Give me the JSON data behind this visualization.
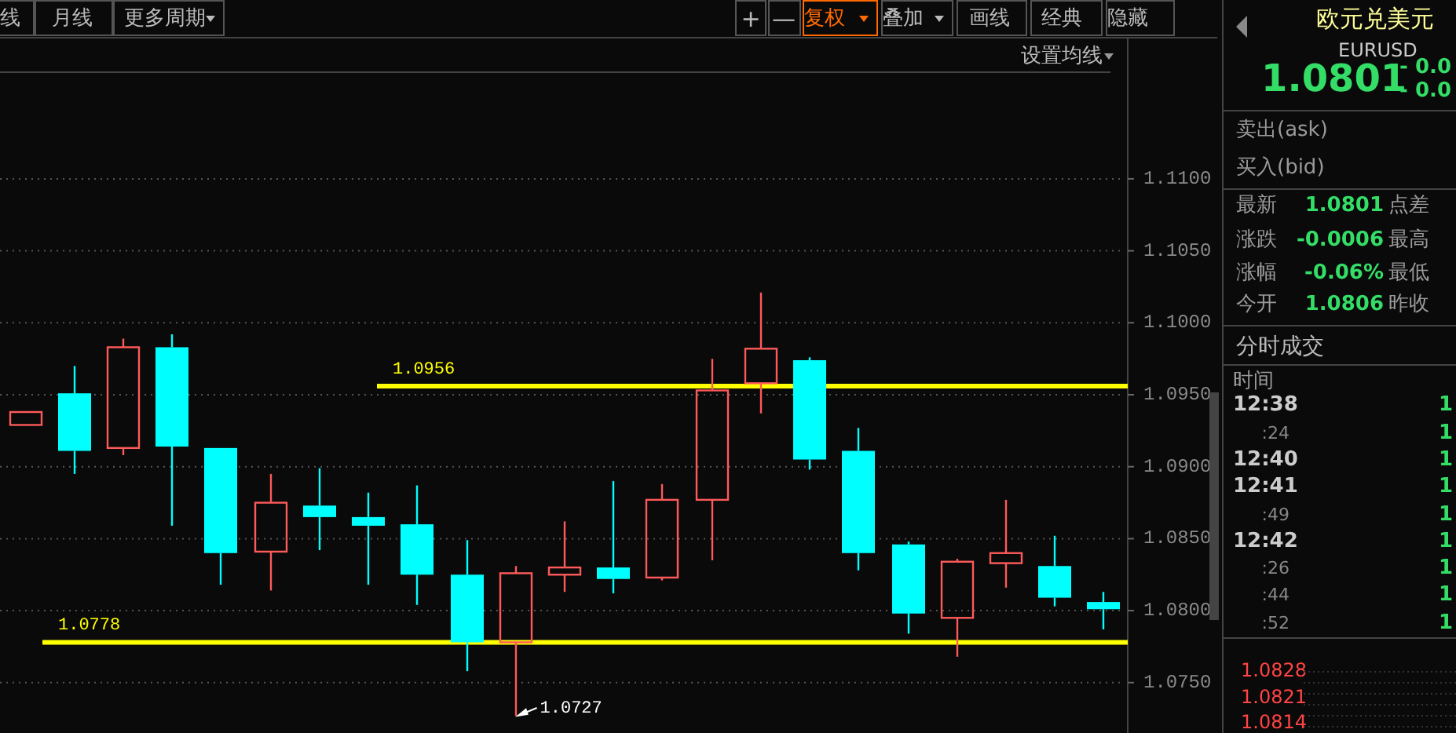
{
  "chart_data": [
    {
      "type": "candlestick",
      "categories": [
        null,
        null,
        null,
        null,
        null,
        null,
        null,
        null,
        null,
        null,
        null,
        null,
        null,
        null,
        null,
        null,
        null,
        null,
        null,
        null,
        null,
        null,
        null
      ],
      "ohlc": [
        [
          1.0929,
          1.0938,
          1.0929,
          1.0938
        ],
        [
          1.0951,
          1.097,
          1.0895,
          1.0911
        ],
        [
          1.0913,
          1.0989,
          1.0908,
          1.0983
        ],
        [
          1.0983,
          1.0992,
          1.0859,
          1.0914
        ],
        [
          1.0913,
          1.0913,
          1.0818,
          1.084
        ],
        [
          1.0841,
          1.0895,
          1.0814,
          1.0875
        ],
        [
          1.0873,
          1.0899,
          1.0842,
          1.0865
        ],
        [
          1.0865,
          1.0882,
          1.0818,
          1.0859
        ],
        [
          1.086,
          1.0887,
          1.0804,
          1.0825
        ],
        [
          1.0825,
          1.0849,
          1.0758,
          1.0778
        ],
        [
          1.0778,
          1.0831,
          1.0727,
          1.0826
        ],
        [
          1.0825,
          1.0862,
          1.0813,
          1.083
        ],
        [
          1.083,
          1.089,
          1.0812,
          1.0822
        ],
        [
          1.0823,
          1.0888,
          1.0821,
          1.0877
        ],
        [
          1.0877,
          1.0975,
          1.0835,
          1.0953
        ],
        [
          1.0958,
          1.1021,
          1.0937,
          1.0982
        ],
        [
          1.0974,
          1.0976,
          1.0898,
          1.0905
        ],
        [
          1.0911,
          1.0927,
          1.0828,
          1.084
        ],
        [
          1.0846,
          1.0848,
          1.0784,
          1.0798
        ],
        [
          1.0795,
          1.0836,
          1.0768,
          1.0834
        ],
        [
          1.0833,
          1.0877,
          1.0816,
          1.084
        ],
        [
          1.0831,
          1.0852,
          1.0803,
          1.0809
        ],
        [
          1.0806,
          1.0813,
          1.0787,
          1.0801
        ]
      ],
      "ylim": [
        1.0715,
        1.1173
      ],
      "yticks": [
        {
          "value": 1.075,
          "label": "1.0750"
        },
        {
          "value": 1.08,
          "label": "1.0800"
        },
        {
          "value": 1.085,
          "label": "1.0850"
        },
        {
          "value": 1.09,
          "label": "1.0900"
        },
        {
          "value": 1.095,
          "label": "1.0950"
        },
        {
          "value": 1.1,
          "label": "1.1000"
        },
        {
          "value": 1.105,
          "label": "1.1050"
        },
        {
          "value": 1.11,
          "label": "1.1100"
        }
      ],
      "grid": "y",
      "ref_lines": [
        {
          "axis": "y",
          "value": 1.0956,
          "label": "1.0956",
          "color": "#ffff00"
        },
        {
          "axis": "y",
          "value": 1.0778,
          "label": "1.0778",
          "color": "#ffff00"
        }
      ],
      "annotations": [
        "1.0727",
        "线",
        "月线",
        "更多周期",
        "+",
        "—",
        "复权",
        "叠加",
        "画线",
        "经典",
        "隐藏",
        "设置均线"
      ]
    },
    {
      "type": "other",
      "annotations": [
        "欧元兑美元",
        "EURUSD",
        "1.0801",
        "- 0.0",
        "- 0.0",
        "卖出(ask)",
        "买入(bid)",
        "最新",
        "1.0801",
        "点差",
        "涨跌",
        "-0.0006",
        "最高",
        "涨幅",
        "-0.06%",
        "最低",
        "今开",
        "1.0806",
        "昨收",
        "分时成交",
        "时间",
        "12:38",
        ":24",
        "12:40",
        "12:41",
        ":49",
        "12:42",
        ":26",
        ":44",
        ":52",
        "1",
        "1",
        "1",
        "1",
        "1",
        "1",
        "1",
        "1",
        "1",
        "1.0828",
        "1.0821",
        "1.0814"
      ]
    }
  ]
}
